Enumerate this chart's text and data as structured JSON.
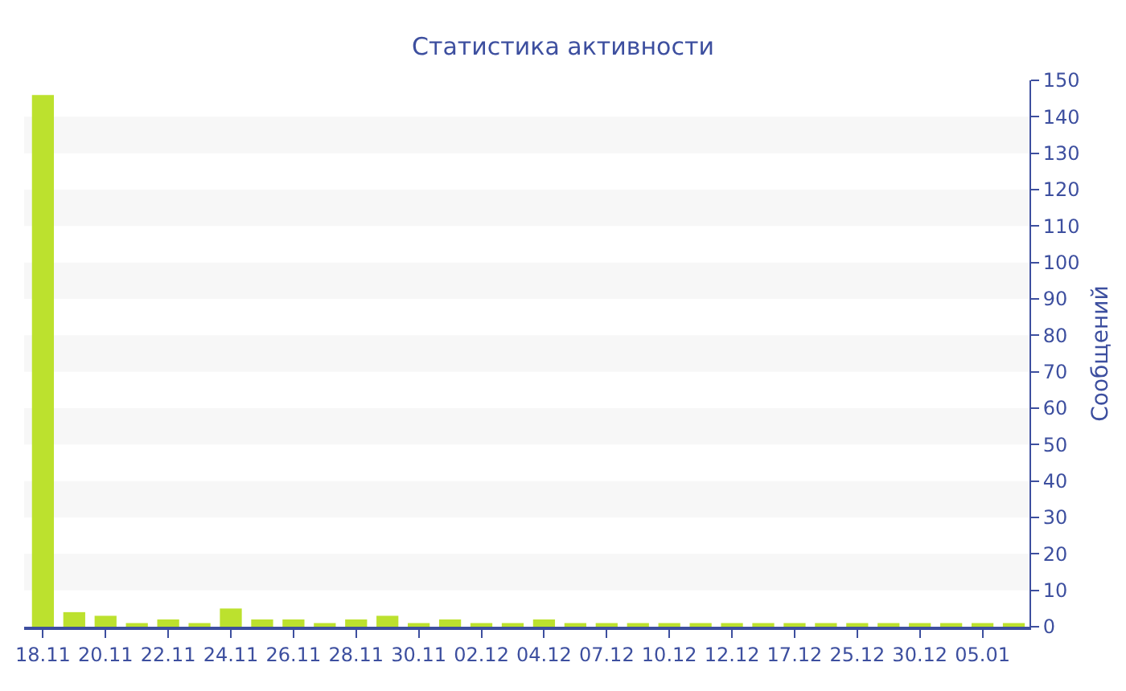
{
  "chart_data": {
    "type": "bar",
    "title": "Статистика активности",
    "ylabel": "Сообщений",
    "categories": [
      "18.11",
      null,
      "20.11",
      null,
      "22.11",
      null,
      "24.11",
      null,
      "26.11",
      null,
      "28.11",
      null,
      "30.11",
      null,
      "02.12",
      null,
      "04.12",
      null,
      "07.12",
      null,
      "10.12",
      null,
      "12.12",
      null,
      "17.12",
      null,
      "25.12",
      null,
      "30.12",
      null,
      "05.01",
      null
    ],
    "values": [
      146,
      4,
      3,
      1,
      2,
      1,
      5,
      2,
      2,
      1,
      2,
      3,
      1,
      2,
      1,
      1,
      2,
      1,
      1,
      1,
      1,
      1,
      1,
      1,
      1,
      1,
      1,
      1,
      1,
      1,
      1,
      1
    ],
    "color": "#bce12e",
    "ylim": [
      0,
      150
    ],
    "yticks": [
      0,
      10,
      20,
      30,
      40,
      50,
      60,
      70,
      80,
      90,
      100,
      110,
      120,
      130,
      140,
      150
    ],
    "legend": false
  }
}
